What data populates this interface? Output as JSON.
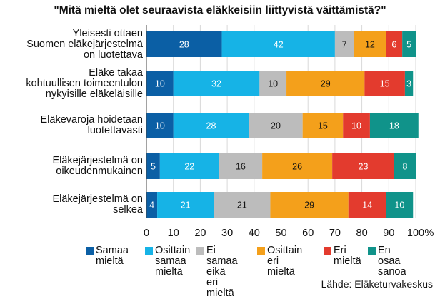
{
  "chart_data": {
    "type": "bar",
    "orientation": "horizontal",
    "stacked": "percent",
    "title": "\"Mitä mieltä olet seuraavista eläkkeisiin liittyvistä väittämistä?\"",
    "categories": [
      "Yleisesti ottaen\nSuomen eläkejärjestelmä\non luotettava",
      "Eläke takaa\nkohtuullisen toimeentulon\nnykyisille eläkeläisille",
      "Eläkevaroja hoidetaan\nluotettavasti",
      "Eläkejärjestelmä on\noikeudenmukainen",
      "Eläkejärjestelmä on\nselkeä"
    ],
    "series": [
      {
        "name": "Samaa\nmieltä",
        "color": "#0b5fa5",
        "values": [
          28,
          10,
          10,
          5,
          4
        ]
      },
      {
        "name": "Osittain\nsamaa\nmieltä",
        "color": "#16b3e6",
        "values": [
          42,
          32,
          28,
          22,
          21
        ]
      },
      {
        "name": "Ei samaa\neikä eri\nmieltä",
        "color": "#bcbcbc",
        "values": [
          7,
          10,
          20,
          16,
          21
        ]
      },
      {
        "name": "Osittain\neri mieltä",
        "color": "#f4a01b",
        "values": [
          12,
          29,
          15,
          26,
          29
        ]
      },
      {
        "name": "Eri\nmieltä",
        "color": "#e33b2e",
        "values": [
          6,
          15,
          10,
          23,
          14
        ]
      },
      {
        "name": "En osaa\nsanoa",
        "color": "#10938a",
        "values": [
          5,
          3,
          18,
          8,
          10
        ]
      }
    ],
    "xlim": [
      0,
      100
    ],
    "xticks": [
      "0",
      "10",
      "20",
      "30",
      "40",
      "50",
      "60",
      "70",
      "80",
      "90",
      "100"
    ],
    "xunit": "%",
    "grid": true,
    "legend_position": "bottom",
    "source": "Lähde: Eläketurvakeskus"
  }
}
